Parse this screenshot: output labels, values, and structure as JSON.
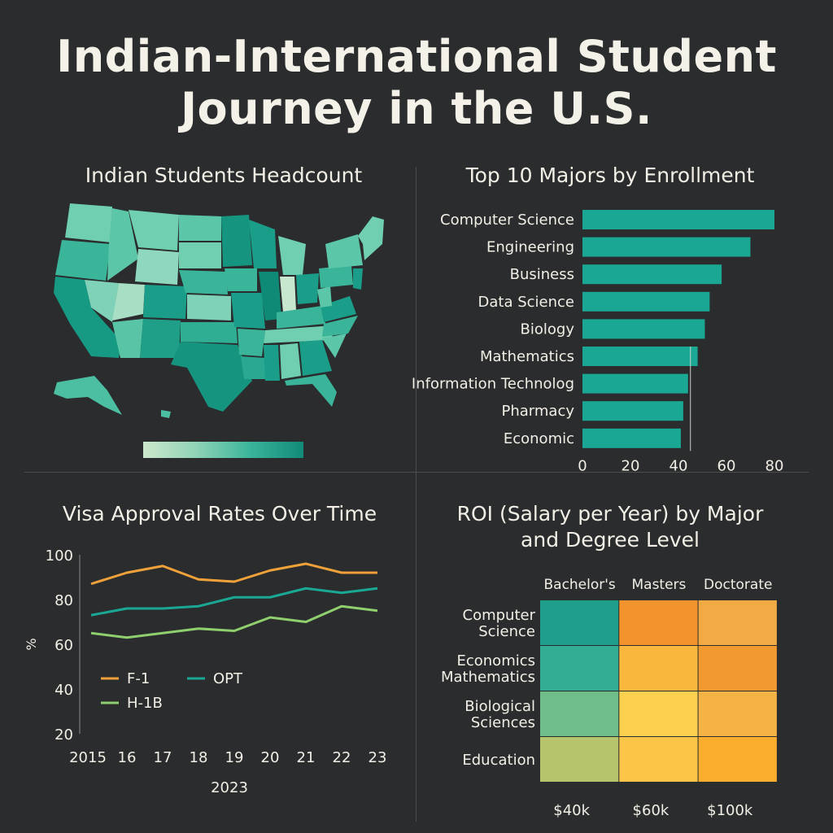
{
  "title_line1": "Indian-International Student",
  "title_line2": "Journey in the U.S.",
  "colors": {
    "background": "#2a2c2d",
    "teal": "#1aa894",
    "orange": "#f0a13a",
    "green": "#8fcf6e"
  },
  "map_panel": {
    "title": "Indian Students Headcount"
  },
  "chart_data": [
    {
      "type": "bar",
      "orientation": "horizontal",
      "title": "Top 10 Majors by Enrollment",
      "categories": [
        "Computer Science",
        "Engineering",
        "Business",
        "Data Science",
        "Biology",
        "Mathematics",
        "Information Technolog",
        "Pharmacy",
        "Economic"
      ],
      "values": [
        80,
        70,
        58,
        53,
        51,
        48,
        44,
        42,
        41
      ],
      "xticks": [
        "0",
        "20",
        "40",
        "60",
        "80"
      ],
      "xlim": [
        0,
        80
      ],
      "grid": false
    },
    {
      "type": "line",
      "title": "Visa Approval Rates Over Time",
      "xlabel": "2023",
      "ylabel": "%",
      "x": [
        "2015",
        "16",
        "17",
        "18",
        "19",
        "20",
        "21",
        "22",
        "23"
      ],
      "ylim": [
        20,
        100
      ],
      "yticks": [
        "20",
        "40",
        "60",
        "80",
        "100"
      ],
      "series": [
        {
          "name": "F-1",
          "color": "#f0a13a",
          "values": [
            87,
            92,
            95,
            89,
            88,
            93,
            96,
            92,
            92
          ]
        },
        {
          "name": "OPT",
          "color": "#1aa894",
          "values": [
            73,
            76,
            76,
            77,
            81,
            81,
            85,
            83,
            85
          ]
        },
        {
          "name": "H-1B",
          "color": "#8fcf6e",
          "values": [
            65,
            63,
            65,
            67,
            66,
            72,
            70,
            77,
            75
          ]
        }
      ],
      "legend": "inside-bottom-left"
    },
    {
      "type": "heatmap",
      "title_line1": "ROI (Salary per Year) by Major",
      "title_line2": "and Degree Level",
      "columns": [
        "Bachelor's",
        "Masters",
        "Doctorate"
      ],
      "rows": [
        {
          "label_lines": [
            "Computer",
            "Science"
          ],
          "cells": [
            "#1d9f8c",
            "#f2932d",
            "#f2aa45"
          ]
        },
        {
          "label_lines": [
            "Economics",
            "Mathematics"
          ],
          "cells": [
            "#33ad93",
            "#f9b73e",
            "#f2992f"
          ]
        },
        {
          "label_lines": [
            "Biological",
            "Sciences"
          ],
          "cells": [
            "#6fbd88",
            "#fdd14f",
            "#f5b346"
          ]
        },
        {
          "label_lines": [
            "Education"
          ],
          "cells": [
            "#b6c46b",
            "#fbc547",
            "#fbad2e"
          ]
        }
      ],
      "scale_labels": [
        "$40k",
        "$60k",
        "$100k"
      ]
    }
  ]
}
